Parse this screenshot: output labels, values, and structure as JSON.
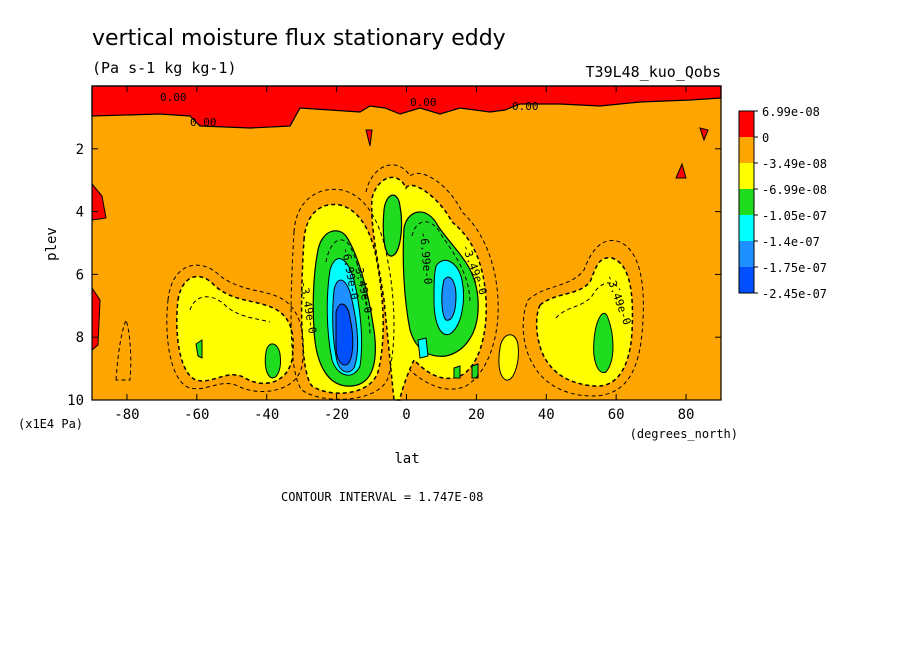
{
  "chart_data": {
    "type": "heatmap",
    "title": "vertical moisture flux stationary eddy",
    "units": "(Pa s-1 kg kg-1)",
    "experiment": "T39L48_kuo_Qobs",
    "xlabel": "lat",
    "xunits": "(degrees_north)",
    "ylabel": "plev",
    "yunits": "(x1E4 Pa)",
    "xlim": [
      -90,
      90
    ],
    "ylim": [
      10,
      0
    ],
    "x_ticks": [
      -80,
      -60,
      -40,
      -20,
      0,
      20,
      40,
      60,
      80
    ],
    "y_ticks": [
      2,
      4,
      6,
      8,
      10
    ],
    "contour_interval": "CONTOUR INTERVAL = 1.747E-08",
    "contour_labels": [
      "0.00",
      "0.00",
      "0.00",
      "0.00",
      "-3.49e-0",
      "-6.99e-0",
      "-6.99e-0",
      "-3.49e-0",
      "-3.49e-0",
      "-3.49e-0"
    ],
    "legend": {
      "labels": [
        "6.99e-08",
        "0",
        "-3.49e-08",
        "-6.99e-08",
        "-1.05e-07",
        "-1.4e-07",
        "-1.75e-07",
        "-2.45e-07"
      ],
      "colors": [
        "#ff0000",
        "#ffa500",
        "#ffff00",
        "#1fdc1f",
        "#00ffff",
        "#1e90ff",
        "#0050ff"
      ]
    },
    "regions": [
      {
        "level": "positive",
        "color": "#ff0000",
        "description": "upper levels near top"
      },
      {
        "level": "min",
        "lat": -18,
        "plev": 8,
        "value": -2.45e-07
      },
      {
        "level": "min",
        "lat": 13,
        "plev": 7,
        "value": -1.4e-07
      },
      {
        "level": "local",
        "lat": 55,
        "plev": 8,
        "value": -1.05e-07
      },
      {
        "level": "local",
        "lat": -37,
        "plev": 8.5,
        "value": -1.05e-07
      },
      {
        "level": "local",
        "lat": -3,
        "plev": 5,
        "value": -1.05e-07
      }
    ]
  }
}
